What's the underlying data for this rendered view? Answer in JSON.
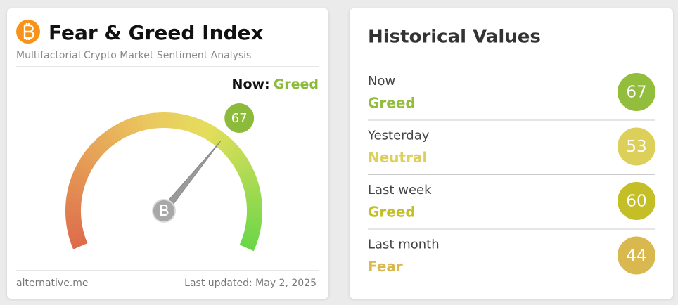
{
  "fear_greed": {
    "title": "Fear & Greed Index",
    "subtitle": "Multifactorial Crypto Market Sentiment Analysis",
    "now_label": "Now:",
    "now_status": "Greed",
    "status_color": "#8cbb3c",
    "gauge": {
      "value": 67,
      "color": "#8cbb3c"
    },
    "source": "alternative.me",
    "updated": "Last updated: May 2, 2025"
  },
  "historical": {
    "title": "Historical Values",
    "rows": [
      {
        "period": "Now",
        "status": "Greed",
        "value": 67,
        "color": "#93bd3d"
      },
      {
        "period": "Yesterday",
        "status": "Neutral",
        "value": 53,
        "color": "#dccf5a"
      },
      {
        "period": "Last week",
        "status": "Greed",
        "value": 60,
        "color": "#c4bf27"
      },
      {
        "period": "Last month",
        "status": "Fear",
        "value": 44,
        "color": "#d8b84f"
      }
    ]
  }
}
